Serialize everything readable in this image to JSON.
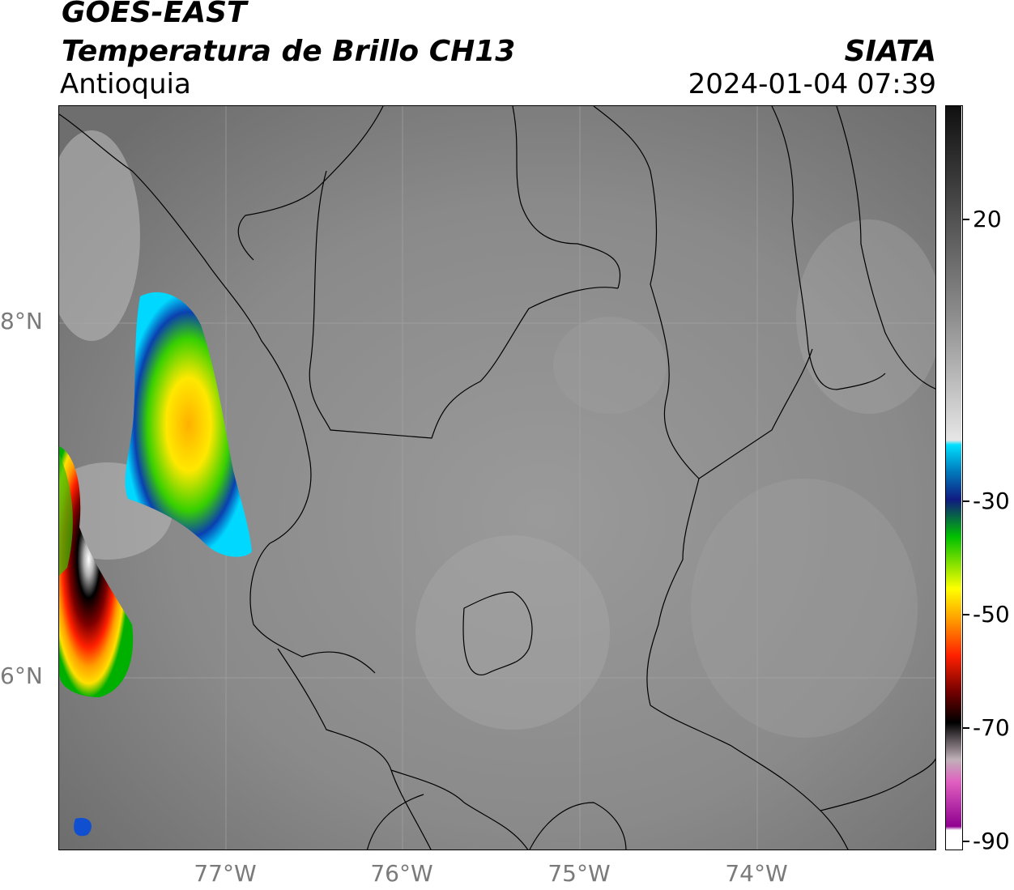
{
  "header": {
    "line1": "GOES-EAST",
    "line2": "Temperatura de Brillo CH13",
    "region": "Antioquia",
    "brand": "SIATA",
    "datetime": "2024-01-04 07:39"
  },
  "axes": {
    "lat_labels": [
      "8°N",
      "6°N"
    ],
    "lon_labels": [
      "77°W",
      "76°W",
      "75°W",
      "74°W"
    ]
  },
  "colorbar": {
    "labels": [
      "20",
      "-30",
      "-50",
      "-70",
      "-90"
    ],
    "colors": {
      "gray_dark": "#1a1a1a",
      "gray_light": "#f2f2f2",
      "cyan": "#00d8ff",
      "blue": "#1030a0",
      "green": "#00c800",
      "yellow": "#ffe800",
      "orange": "#ff8c00",
      "red": "#e00000",
      "darkred": "#600000",
      "black": "#000000",
      "pink": "#e060c0",
      "purple": "#900090"
    }
  }
}
